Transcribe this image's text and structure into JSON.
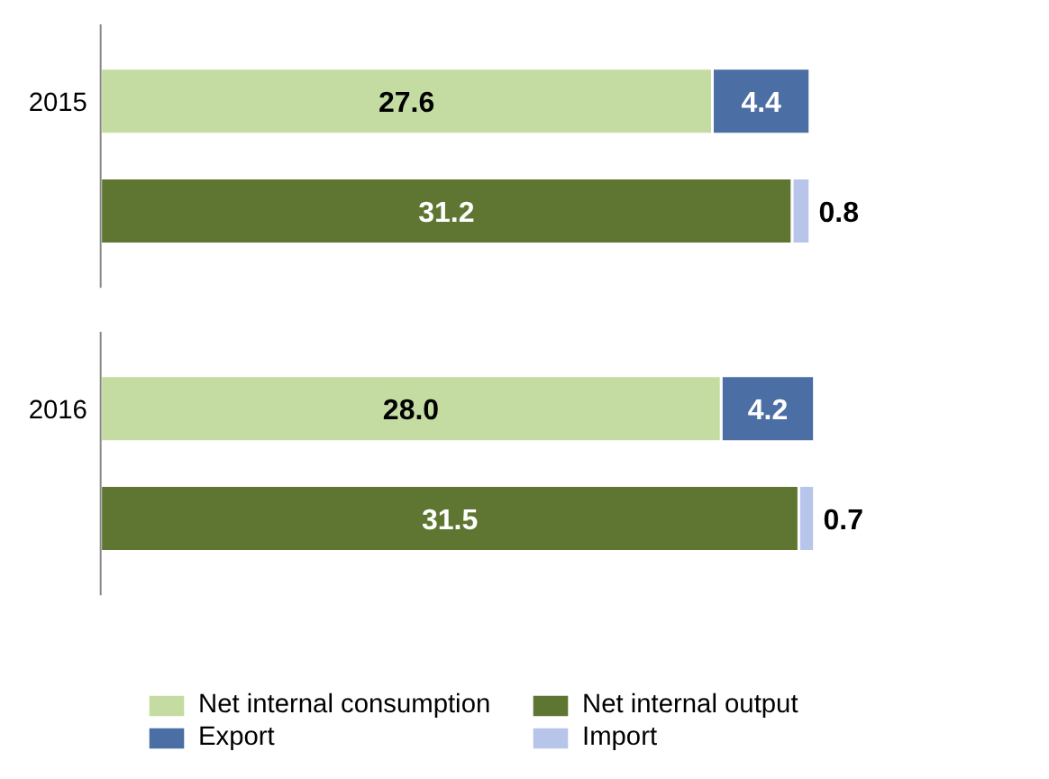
{
  "chart_data": {
    "type": "bar",
    "orientation": "horizontal",
    "stacked": true,
    "legend": "bottom",
    "categories": [
      "2015",
      null,
      "2016",
      null
    ],
    "series": [
      {
        "name": "Net internal consumption",
        "color": "#c4dca2",
        "values": [
          27.6,
          null,
          28.0,
          null
        ],
        "value_labels": [
          "27.6",
          null,
          "28.0",
          null
        ]
      },
      {
        "name": "Net internal output",
        "color": "#5e7631",
        "values": [
          null,
          31.2,
          null,
          31.5
        ],
        "value_labels": [
          null,
          "31.2",
          null,
          "31.5"
        ]
      },
      {
        "name": "Export",
        "color": "#4b6ea4",
        "values": [
          4.4,
          null,
          4.2,
          null
        ],
        "value_labels": [
          "4.4",
          null,
          "4.2",
          null
        ]
      },
      {
        "name": "Import",
        "color": "#b7c5ea",
        "values": [
          null,
          0.8,
          null,
          0.7
        ],
        "value_labels": [
          null,
          "0.8",
          null,
          "0.7"
        ]
      }
    ]
  }
}
